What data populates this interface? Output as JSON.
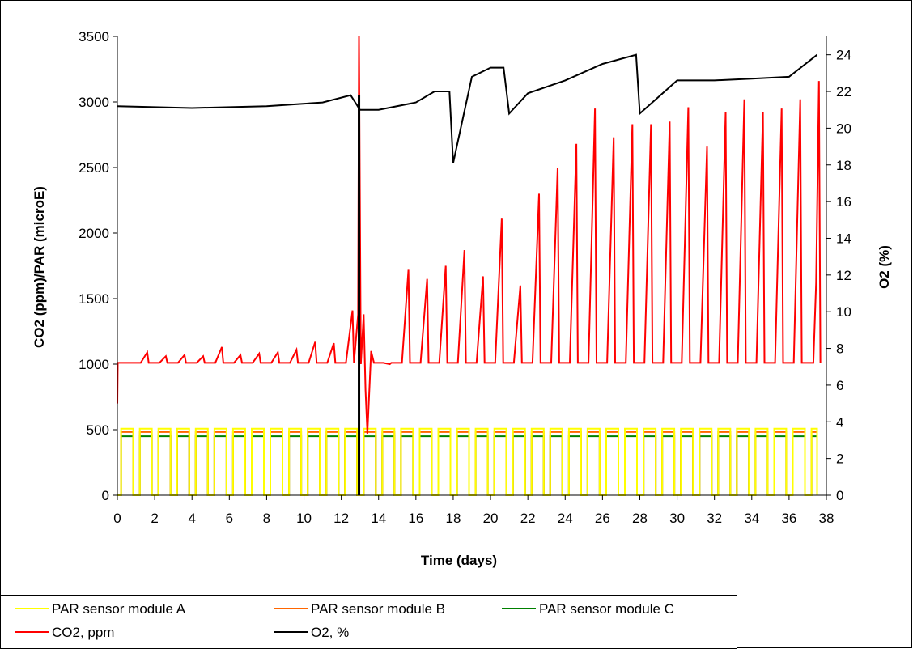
{
  "chart_data": {
    "type": "line",
    "title": "",
    "xlabel": "Time (days)",
    "ylabel": "CO2 (ppm)/PAR (microE)",
    "y2label": "O2 (%)",
    "xlim": [
      0,
      38
    ],
    "ylim": [
      0,
      3500
    ],
    "y2lim": [
      0,
      25
    ],
    "x_ticks": [
      "0",
      "2",
      "4",
      "6",
      "8",
      "10",
      "12",
      "14",
      "16",
      "18",
      "20",
      "22",
      "24",
      "26",
      "28",
      "30",
      "32",
      "34",
      "36",
      "38"
    ],
    "y_ticks": [
      "0",
      "500",
      "1000",
      "1500",
      "2000",
      "2500",
      "3000",
      "3500"
    ],
    "y2_ticks": [
      "0",
      "2",
      "4",
      "6",
      "8",
      "10",
      "12",
      "14",
      "16",
      "18",
      "20",
      "22",
      "24"
    ],
    "grid": false,
    "legend_position": "bottom",
    "series": [
      {
        "name": "PAR sensor module A",
        "axis": "left",
        "color": "#ffff00",
        "pattern": "day-night square wave",
        "period_days": 1,
        "on_level": 500,
        "off_level": 0
      },
      {
        "name": "PAR sensor module B",
        "axis": "left",
        "color": "#ff6600",
        "pattern": "day-night square wave",
        "period_days": 1,
        "on_level": 480,
        "off_level": 0
      },
      {
        "name": "PAR sensor module C",
        "axis": "left",
        "color": "#008000",
        "pattern": "day-night square wave",
        "period_days": 1,
        "on_level": 450,
        "off_level": 0
      },
      {
        "name": "CO2, ppm",
        "axis": "left",
        "color": "#ff0000",
        "baseline": 1010,
        "x": [
          0,
          1,
          2,
          3,
          4,
          5,
          6,
          7,
          8,
          9,
          10,
          11,
          12,
          13,
          13.5,
          14,
          15,
          16,
          17,
          18,
          19,
          20,
          21,
          22,
          23,
          24,
          25,
          26,
          27,
          28,
          29,
          30,
          31,
          32,
          33,
          34,
          35,
          36,
          37
        ],
        "values": [
          1010,
          1090,
          1060,
          1070,
          1060,
          1130,
          1070,
          1080,
          1090,
          1110,
          1170,
          1160,
          1410,
          3500,
          470,
          1000,
          1720,
          1650,
          1750,
          1870,
          1670,
          2110,
          1600,
          2300,
          2500,
          2680,
          2950,
          2730,
          2830,
          2830,
          2850,
          2960,
          2660,
          2920,
          3020,
          2920,
          2950,
          3020,
          3160
        ],
        "note": "daily peaks above baseline"
      },
      {
        "name": "O2, %",
        "axis": "right",
        "color": "#000000",
        "x": [
          0,
          4,
          8,
          11,
          12.5,
          13,
          14,
          16,
          17,
          17.8,
          18,
          19,
          20,
          20.7,
          21,
          22,
          24,
          26,
          27.8,
          28,
          30,
          32,
          34,
          36,
          37.5
        ],
        "values": [
          21.2,
          21.1,
          21.2,
          21.4,
          21.8,
          21.0,
          21.0,
          21.4,
          22.0,
          22.0,
          18.1,
          22.8,
          23.3,
          23.3,
          20.8,
          21.9,
          22.6,
          23.5,
          24.0,
          20.8,
          22.6,
          22.6,
          22.7,
          22.8,
          24.0
        ]
      }
    ],
    "legend": [
      {
        "label": "PAR sensor module A",
        "color": "#ffff00"
      },
      {
        "label": "PAR sensor module B",
        "color": "#ff6600"
      },
      {
        "label": "PAR sensor module C",
        "color": "#008000"
      },
      {
        "label": "CO2, ppm",
        "color": "#ff0000"
      },
      {
        "label": "O2, %",
        "color": "#000000"
      }
    ]
  }
}
